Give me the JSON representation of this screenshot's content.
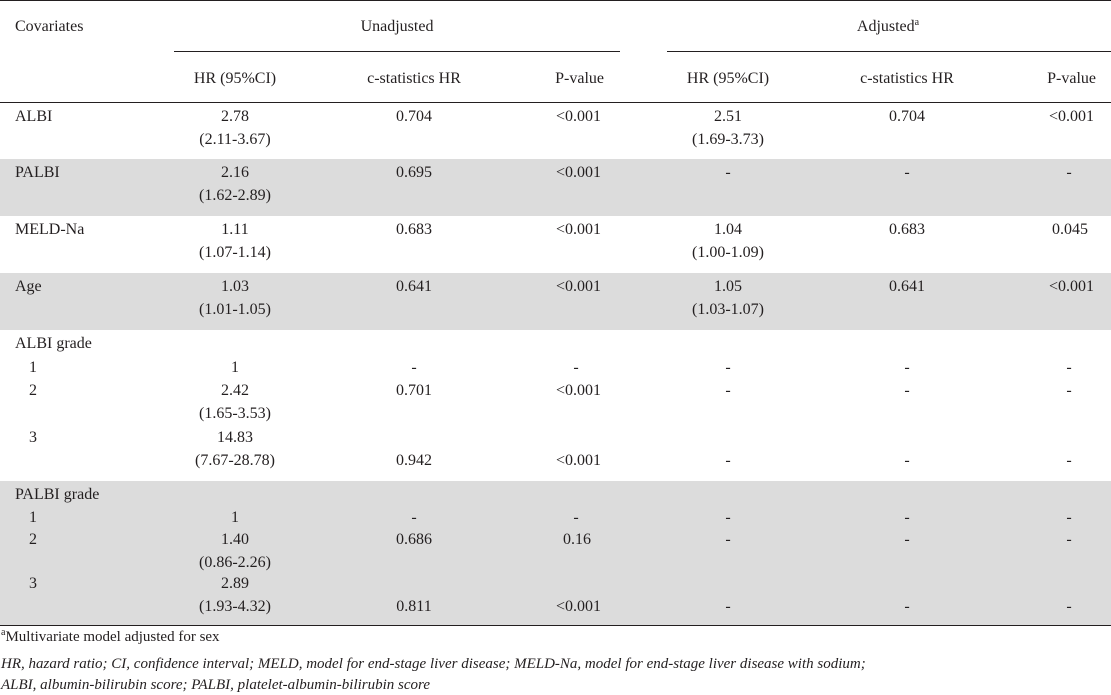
{
  "header": {
    "covariates": "Covariates",
    "unadjusted": "Unadjusted",
    "adjusted": "Adjusted",
    "adjusted_mark": "a"
  },
  "columns": [
    "HR (95%CI)",
    "c-statistics HR",
    "P-value",
    "HR (95%CI)",
    "c-statistics HR",
    "P-value"
  ],
  "rows": [
    {
      "label": "ALBI",
      "u_hr": "2.78",
      "u_ci": "(2.11-3.67)",
      "u_c": "0.704",
      "u_p": "<0.001",
      "a_hr": "2.51",
      "a_ci": "(1.69-3.73)",
      "a_c": "0.704",
      "a_p": "<0.001"
    },
    {
      "label": "PALBI",
      "u_hr": "2.16",
      "u_ci": "(1.62-2.89)",
      "u_c": "0.695",
      "u_p": "<0.001",
      "a_hr": "-",
      "a_ci": "",
      "a_c": "-",
      "a_p": "-"
    },
    {
      "label": "MELD-Na",
      "u_hr": "1.11",
      "u_ci": "(1.07-1.14)",
      "u_c": "0.683",
      "u_p": "<0.001",
      "a_hr": "1.04",
      "a_ci": "(1.00-1.09)",
      "a_c": "0.683",
      "a_p": "0.045"
    },
    {
      "label": "Age",
      "u_hr": "1.03",
      "u_ci": "(1.01-1.05)",
      "u_c": "0.641",
      "u_p": "<0.001",
      "a_hr": "1.05",
      "a_ci": "(1.03-1.07)",
      "a_c": "0.641",
      "a_p": "<0.001"
    }
  ],
  "albi_grade": {
    "label": "ALBI grade",
    "g1": {
      "label": "1",
      "u_hr": "1",
      "u_c": "-",
      "u_p": "-",
      "a_hr": "-",
      "a_c": "-",
      "a_p": "-"
    },
    "g2": {
      "label": "2",
      "u_hr": "2.42",
      "u_ci": "(1.65-3.53)",
      "u_c": "0.701",
      "u_p": "<0.001",
      "a_hr": "-",
      "a_c": "-",
      "a_p": "-"
    },
    "g3": {
      "label": "3",
      "u_hr": "14.83",
      "u_ci": "(7.67-28.78)",
      "u_c": "0.942",
      "u_p": "<0.001",
      "a_hr": "-",
      "a_c": "-",
      "a_p": "-"
    }
  },
  "palbi_grade": {
    "label": "PALBI grade",
    "g1": {
      "label": "1",
      "u_hr": "1",
      "u_c": "-",
      "u_p": "-",
      "a_hr": "-",
      "a_c": "-",
      "a_p": "-"
    },
    "g2": {
      "label": "2",
      "u_hr": "1.40",
      "u_ci": "(0.86-2.26)",
      "u_c": "0.686",
      "u_p": "0.16",
      "a_hr": "-",
      "a_c": "-",
      "a_p": "-"
    },
    "g3": {
      "label": "3",
      "u_hr": "2.89",
      "u_ci": "(1.93-4.32)",
      "u_c": "0.811",
      "u_p": "<0.001",
      "a_hr": "-",
      "a_c": "-",
      "a_p": "-"
    }
  },
  "footnotes": {
    "mark": "a",
    "note": "Multivariate model adjusted for sex",
    "abbrev1": "HR, hazard ratio; CI, confidence interval; MELD, model for end-stage liver disease; MELD-Na, model for end-stage liver disease with sodium;",
    "abbrev2": "ALBI, albumin-bilirubin score; PALBI, platelet-albumin-bilirubin score"
  },
  "colors": {
    "shade": "#dcdcdc",
    "text": "#231f20",
    "rule": "#231f20"
  }
}
